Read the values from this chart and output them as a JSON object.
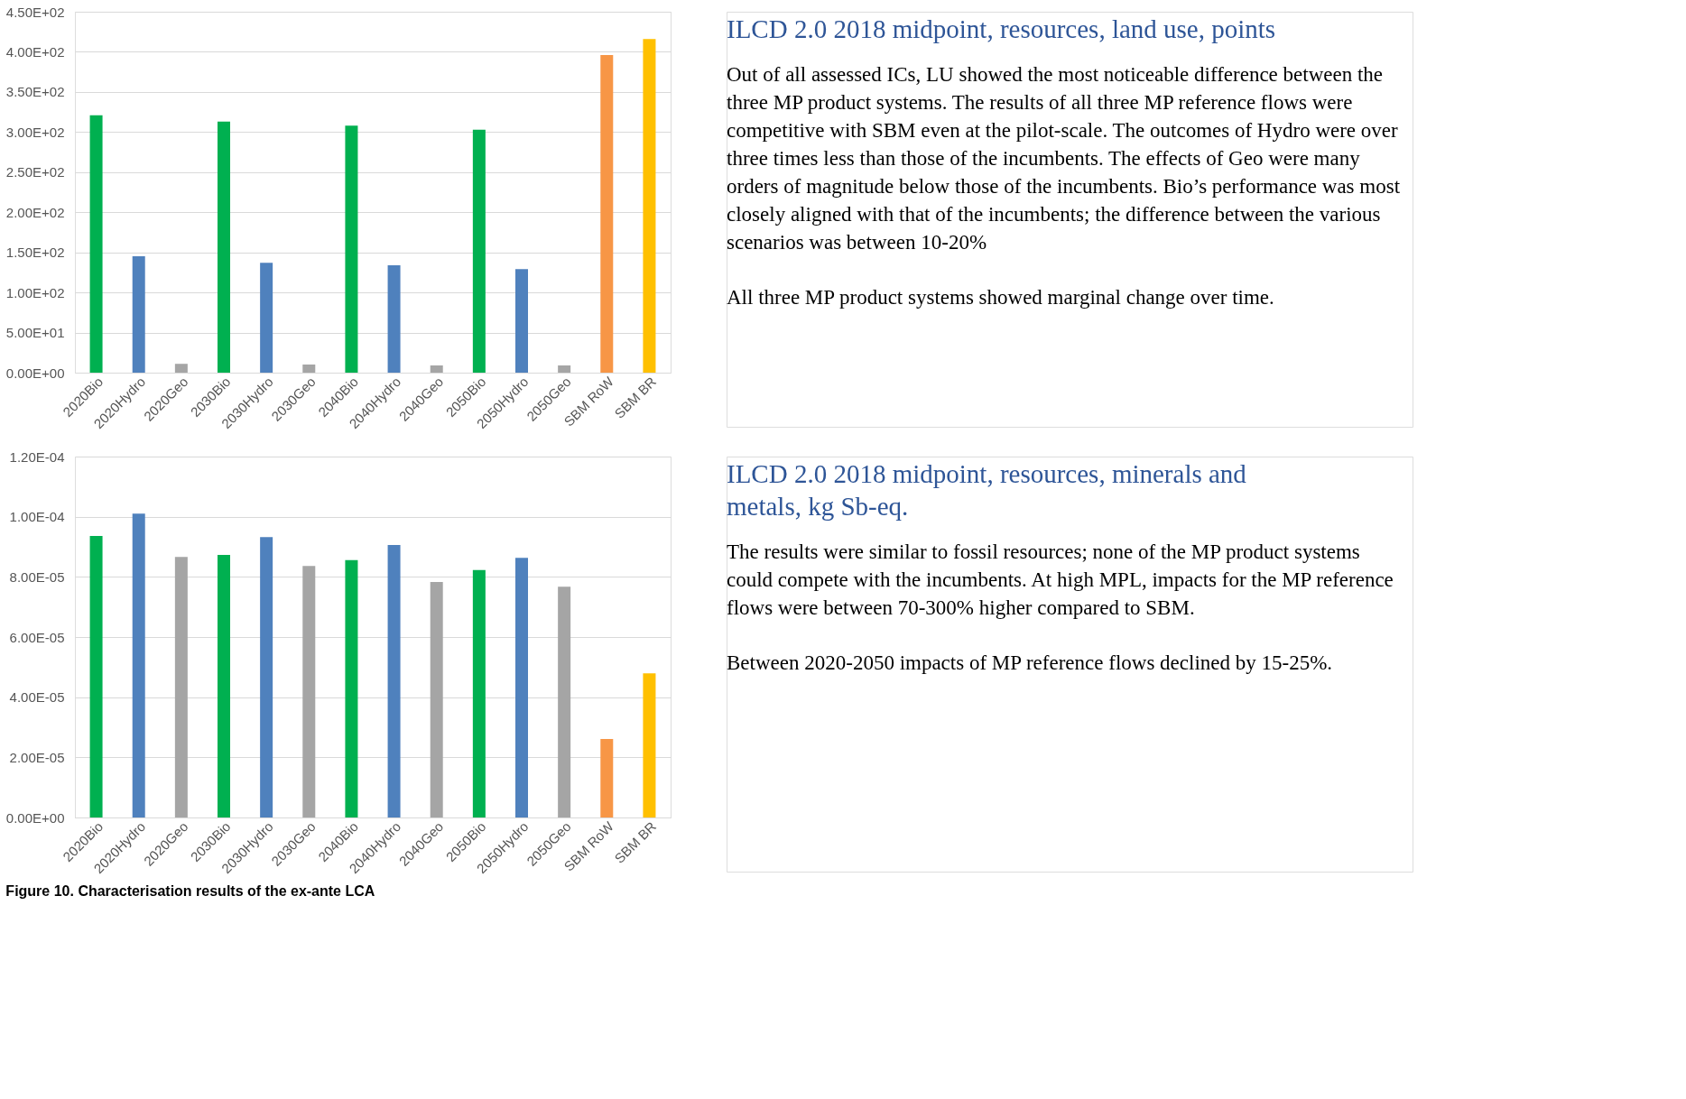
{
  "chart_data": [
    {
      "type": "bar",
      "categories": [
        "2020Bio",
        "2020Hydro",
        "2020Geo",
        "2030Bio",
        "2030Hydro",
        "2030Geo",
        "2040Bio",
        "2040Hydro",
        "2040Geo",
        "2050Bio",
        "2050Hydro",
        "2050Geo",
        "SBM RoW",
        "SBM BR"
      ],
      "values": [
        321,
        145,
        11,
        313,
        137,
        10,
        308,
        134,
        9,
        303,
        129,
        9,
        396,
        416
      ],
      "colors": [
        "#00b050",
        "#4f81bd",
        "#a5a5a5",
        "#00b050",
        "#4f81bd",
        "#a5a5a5",
        "#00b050",
        "#4f81bd",
        "#a5a5a5",
        "#00b050",
        "#4f81bd",
        "#a5a5a5",
        "#f79646",
        "#ffc000"
      ],
      "ylim": [
        0,
        450
      ],
      "yticks": [
        {
          "value": 0,
          "label": "0.00E+00"
        },
        {
          "value": 50,
          "label": "5.00E+01"
        },
        {
          "value": 100,
          "label": "1.00E+02"
        },
        {
          "value": 150,
          "label": "1.50E+02"
        },
        {
          "value": 200,
          "label": "2.00E+02"
        },
        {
          "value": 250,
          "label": "2.50E+02"
        },
        {
          "value": 300,
          "label": "3.00E+02"
        },
        {
          "value": 350,
          "label": "3.50E+02"
        },
        {
          "value": 400,
          "label": "4.00E+02"
        },
        {
          "value": 450,
          "label": "4.50E+02"
        }
      ],
      "grid": "y"
    },
    {
      "type": "other",
      "title": "ILCD 2.0 2018 midpoint, resources, land use, points",
      "annotations": [
        "Out of all assessed ICs, LU showed the most noticeable difference between the three MP product systems. The results of all three MP reference flows were competitive with SBM even at the pilot-scale. The outcomes of Hydro were over three times less than those of the incumbents. The effects of Geo were many orders of magnitude below those of the incumbents. Bio’s performance was most closely aligned with that of the incumbents; the difference between the various scenarios was between 10-20%",
        "All three MP product systems showed marginal change over time."
      ]
    },
    {
      "type": "bar",
      "categories": [
        "2020Bio",
        "2020Hydro",
        "2020Geo",
        "2030Bio",
        "2030Hydro",
        "2030Geo",
        "2040Bio",
        "2040Hydro",
        "2040Geo",
        "2050Bio",
        "2050Hydro",
        "2050Geo",
        "SBM RoW",
        "SBM BR"
      ],
      "values": [
        9.36e-05,
        0.000101,
        8.66e-05,
        8.73e-05,
        9.32e-05,
        8.36e-05,
        8.56e-05,
        9.06e-05,
        7.83e-05,
        8.23e-05,
        8.63e-05,
        7.67e-05,
        2.61e-05,
        4.79e-05
      ],
      "colors": [
        "#00b050",
        "#4f81bd",
        "#a5a5a5",
        "#00b050",
        "#4f81bd",
        "#a5a5a5",
        "#00b050",
        "#4f81bd",
        "#a5a5a5",
        "#00b050",
        "#4f81bd",
        "#a5a5a5",
        "#f79646",
        "#ffc000"
      ],
      "ylim": [
        0,
        0.00012
      ],
      "yticks": [
        {
          "value": 0,
          "label": "0.00E+00"
        },
        {
          "value": 2e-05,
          "label": "2.00E-05"
        },
        {
          "value": 4e-05,
          "label": "4.00E-05"
        },
        {
          "value": 6e-05,
          "label": "6.00E-05"
        },
        {
          "value": 8e-05,
          "label": "8.00E-05"
        },
        {
          "value": 0.0001,
          "label": "1.00E-04"
        },
        {
          "value": 0.00012,
          "label": "1.20E-04"
        }
      ],
      "grid": "y",
      "annotations": [
        "Figure 10. Characterisation results of the ex-ante LCA"
      ]
    },
    {
      "type": "other",
      "title": "ILCD 2.0 2018 midpoint, resources, minerals and metals, kg Sb-eq.",
      "annotations": [
        "The results were similar to fossil resources; none of the MP product systems could compete with the incumbents. At high MPL, impacts for the MP reference flows were between 70-300% higher compared to SBM.",
        "Between 2020-2050 impacts of MP reference flows declined by 15-25%."
      ]
    }
  ]
}
